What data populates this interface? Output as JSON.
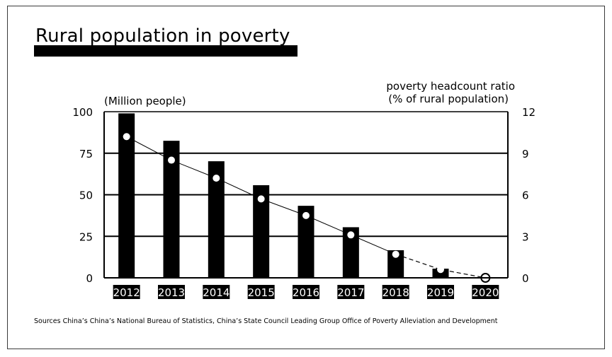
{
  "chart_data": {
    "type": "bar",
    "title": "Rural population in poverty",
    "categories": [
      "2012",
      "2013",
      "2014",
      "2015",
      "2016",
      "2017",
      "2018",
      "2019",
      "2020"
    ],
    "series": [
      {
        "axis": "left",
        "type": "bar",
        "values": [
          98.99,
          82.49,
          70.17,
          55.75,
          43.35,
          30.46,
          16.6,
          5.51,
          0
        ]
      },
      {
        "axis": "right",
        "type": "line",
        "values": [
          10.2,
          8.5,
          7.2,
          5.7,
          4.5,
          3.1,
          1.7,
          0.6,
          0
        ],
        "projected_from": "2018"
      }
    ],
    "ylabel_left": "(Million people)",
    "ylabel_right_line1": "poverty headcount ratio",
    "ylabel_right_line2": "(% of rural population)",
    "ylim_left": [
      0,
      100
    ],
    "ylim_right": [
      0,
      12
    ],
    "yticks_left": [
      "100",
      "75",
      "50",
      "25",
      "0"
    ],
    "yticks_right": [
      "12",
      "9",
      "6",
      "3",
      "0"
    ],
    "grid": true,
    "source": "Sources China’s China’s National Bureau of Statistics, China’s State Council Leading Group Office of Poverty Alleviation and Development"
  }
}
